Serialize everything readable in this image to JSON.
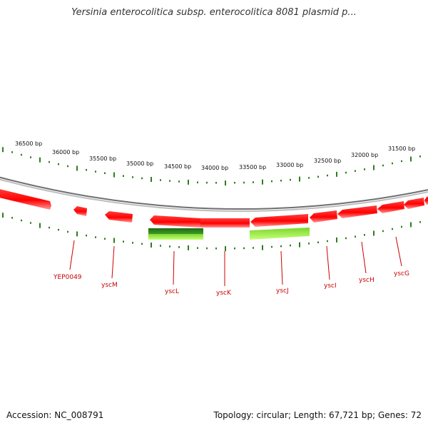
{
  "title": "Yersinia enterocolitica subsp. enterocolitica 8081 plasmid p...",
  "footer": {
    "accession": "Accession: NC_008791",
    "summary": "Topology: circular; Length: 67,721 bp; Genes: 72"
  },
  "colors": {
    "gene": "#ff1a1a",
    "gene_shade": "#ff8a8a",
    "tick": "#2e7d1e",
    "backbone": "#8a8a8a",
    "feature_dark": "#2e7d1e",
    "feature_light": "#9ae83a",
    "label": "#cc0000"
  },
  "scale_labels": [
    "36500 bp",
    "36000 bp",
    "35500 bp",
    "35000 bp",
    "34500 bp",
    "34000 bp",
    "33500 bp",
    "33000 bp",
    "32500 bp",
    "32000 bp",
    "31500 bp"
  ],
  "gene_labels": [
    "YEP0049",
    "yscM",
    "yscL",
    "yscK",
    "yscJ",
    "yscI",
    "yscH",
    "yscG"
  ]
}
